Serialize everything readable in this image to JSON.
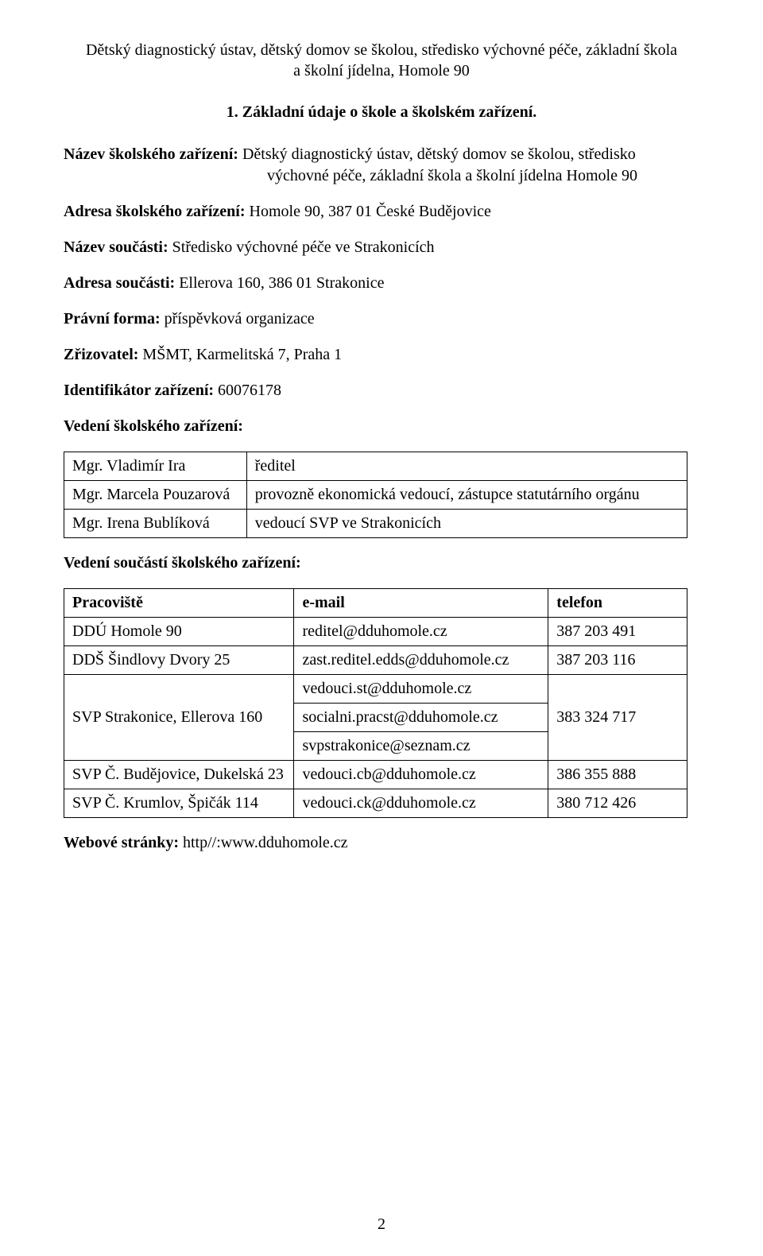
{
  "header": {
    "line1": "Dětský diagnostický ústav, dětský domov se školou, středisko výchovné péče, základní škola",
    "line2": "a školní jídelna, Homole 90"
  },
  "section_title": "1. Základní údaje o škole a školském zařízení.",
  "fields": {
    "nazev_skolskeho_zarizeni": {
      "label": "Název školského zařízení:",
      "value_line1": " Dětský diagnostický ústav, dětský domov se školou, středisko",
      "value_line2": "výchovné péče, základní škola a školní jídelna Homole 90"
    },
    "adresa_skolskeho_zarizeni": {
      "label": "Adresa školského zařízení:",
      "value": " Homole 90, 387 01 České Budějovice"
    },
    "nazev_soucasti": {
      "label": "Název součásti:",
      "value": " Středisko výchovné péče ve Strakonicích"
    },
    "adresa_soucasti": {
      "label": "Adresa součásti:",
      "value": " Ellerova 160, 386 01 Strakonice"
    },
    "pravni_forma": {
      "label": "Právní forma:",
      "value": " příspěvková organizace"
    },
    "zrizovatel": {
      "label": "Zřizovatel:",
      "value": " MŠMT, Karmelitská 7, Praha 1"
    },
    "identifikator_zarizeni": {
      "label": "Identifikátor zařízení:",
      "value": " 60076178"
    },
    "vedeni_label": "Vedení školského zařízení:"
  },
  "table1": {
    "rows": [
      [
        "Mgr. Vladimír Ira",
        "ředitel"
      ],
      [
        "Mgr. Marcela Pouzarová",
        "provozně ekonomická vedoucí, zástupce statutárního orgánu"
      ],
      [
        "Mgr. Irena Bublíková",
        "vedoucí SVP ve Strakonicích"
      ]
    ],
    "col_widths": [
      "230px",
      "555px"
    ]
  },
  "vedeni_soucasti_label": "Vedení součástí školského zařízení:",
  "table2": {
    "headers": [
      "Pracoviště",
      "e-mail",
      "telefon"
    ],
    "col_widths": [
      "290px",
      "320px",
      "175px"
    ],
    "rows": [
      {
        "pracoviste": "DDÚ Homole 90",
        "email": "reditel@dduhomole.cz",
        "telefon": "387 203 491",
        "email_rowspan": 1,
        "tel_rowspan": 1
      },
      {
        "pracoviste": "DDŠ Šindlovy Dvory 25",
        "email": "zast.reditel.edds@dduhomole.cz",
        "telefon": "387 203 116",
        "email_rowspan": 1,
        "tel_rowspan": 1
      },
      {
        "pracoviste": "",
        "email": "vedouci.st@dduhomole.cz",
        "telefon": "",
        "email_rowspan": 1,
        "tel_rowspan": 3,
        "prac_rowspan": 3,
        "pracoviste_label": "SVP Strakonice, Ellerova 160",
        "telefon_label": "383 324 717"
      },
      {
        "email": "socialni.pracst@dduhomole.cz"
      },
      {
        "email": "svpstrakonice@seznam.cz"
      },
      {
        "pracoviste": "SVP Č. Budějovice, Dukelská 23",
        "email": "vedouci.cb@dduhomole.cz",
        "telefon": "386 355 888",
        "email_rowspan": 1,
        "tel_rowspan": 1
      },
      {
        "pracoviste": "SVP Č. Krumlov, Špičák 114",
        "email": "vedouci.ck@dduhomole.cz",
        "telefon": "380 712 426",
        "email_rowspan": 1,
        "tel_rowspan": 1
      }
    ]
  },
  "webove_stranky": {
    "label": "Webové stránky:",
    "value": " http//:www.dduhomole.cz"
  },
  "page_number": "2"
}
